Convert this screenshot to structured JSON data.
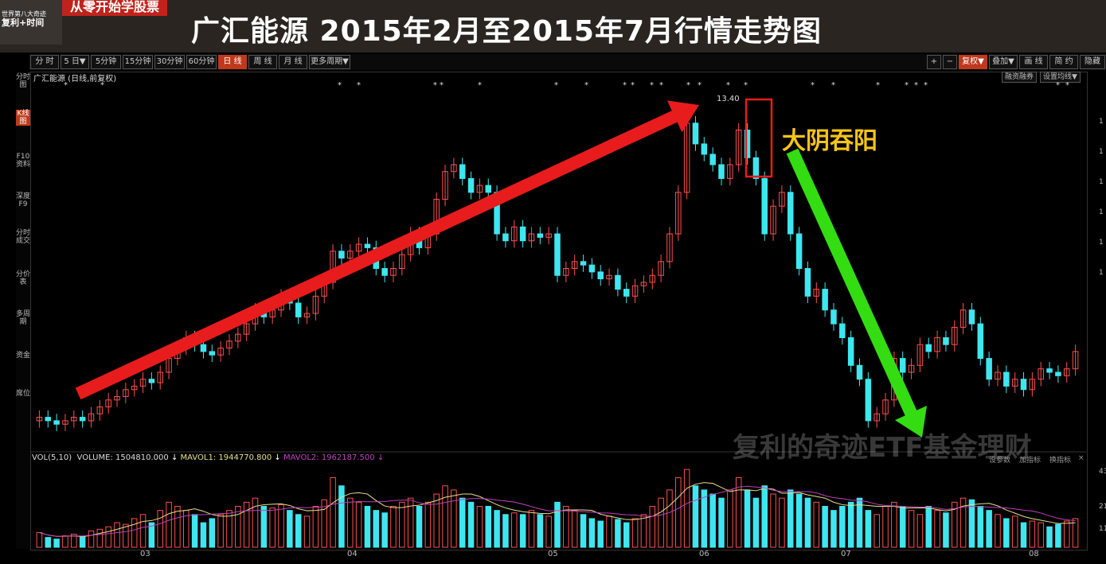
{
  "channel": {
    "badge_lines": [
      "世界第八大奇迹",
      "复利+时间"
    ],
    "banner": "从零开始学股票"
  },
  "title": "广汇能源 2015年2月至2015年7月行情走势图",
  "toolbar": {
    "periods": [
      "分 时",
      "5 日▼",
      "5分钟",
      "15分钟",
      "30分钟",
      "60分钟",
      "日 线",
      "周 线",
      "月 线",
      "更多周期▼"
    ],
    "active_period": "日 线",
    "right_buttons": [
      "+",
      "−",
      "复权▼",
      "叠加▼",
      "画 线",
      "简 约",
      "隐藏"
    ]
  },
  "sidebar": {
    "items": [
      "分时图",
      "K线图",
      "F10资料",
      "深度F9",
      "分时成交",
      "分价表",
      "多周期",
      "资金",
      "席位"
    ],
    "active": "K线图"
  },
  "chart": {
    "stock_title": "广汇能源 (日线,前复权)",
    "peak_label": "13.40",
    "annotation": "大阴吞阳",
    "buttons": [
      "融资融券",
      "设置均线▼"
    ],
    "vol_legend": {
      "name": "VOL(5,10)",
      "volume": "VOLUME: 1504810.000",
      "mavol1": "MAVOL1: 1944770.800",
      "mavol2": "MAVOL2: 1962187.500"
    },
    "vol_buttons": [
      "设参数",
      "加指标",
      "换指标",
      "×"
    ],
    "watermark": "复利的奇迹ETF基金理财",
    "x_labels": [
      "03",
      "04",
      "05",
      "06",
      "07",
      "08"
    ],
    "right_axis_labels": [
      "1",
      "1",
      "1",
      "1",
      "1",
      "1",
      "43",
      "21",
      "11"
    ],
    "colors": {
      "up": "#ff4f4f",
      "down": "#3ee6f0",
      "arrow_up": "#e81c1c",
      "arrow_down": "#33dd11",
      "annotation": "#f5c518"
    }
  },
  "chart_data": {
    "type": "candlestick",
    "title": "广汇能源 (日线,前复权)",
    "categories": [
      "03",
      "04",
      "05",
      "06",
      "07",
      "08"
    ],
    "peak": 13.4,
    "candles_oc": [
      [
        0.06,
        0.07
      ],
      [
        0.07,
        0.06
      ],
      [
        0.06,
        0.05
      ],
      [
        0.05,
        0.06
      ],
      [
        0.06,
        0.07
      ],
      [
        0.07,
        0.06
      ],
      [
        0.06,
        0.08
      ],
      [
        0.08,
        0.1
      ],
      [
        0.1,
        0.12
      ],
      [
        0.12,
        0.13
      ],
      [
        0.13,
        0.15
      ],
      [
        0.15,
        0.16
      ],
      [
        0.16,
        0.18
      ],
      [
        0.18,
        0.17
      ],
      [
        0.17,
        0.2
      ],
      [
        0.2,
        0.24
      ],
      [
        0.24,
        0.27
      ],
      [
        0.27,
        0.3
      ],
      [
        0.3,
        0.28
      ],
      [
        0.28,
        0.26
      ],
      [
        0.26,
        0.25
      ],
      [
        0.25,
        0.27
      ],
      [
        0.27,
        0.29
      ],
      [
        0.29,
        0.31
      ],
      [
        0.31,
        0.34
      ],
      [
        0.34,
        0.38
      ],
      [
        0.38,
        0.36
      ],
      [
        0.36,
        0.38
      ],
      [
        0.38,
        0.42
      ],
      [
        0.42,
        0.4
      ],
      [
        0.4,
        0.36
      ],
      [
        0.36,
        0.37
      ],
      [
        0.37,
        0.42
      ],
      [
        0.42,
        0.46
      ],
      [
        0.46,
        0.55
      ],
      [
        0.55,
        0.53
      ],
      [
        0.53,
        0.55
      ],
      [
        0.55,
        0.57
      ],
      [
        0.57,
        0.56
      ],
      [
        0.56,
        0.5
      ],
      [
        0.5,
        0.48
      ],
      [
        0.48,
        0.5
      ],
      [
        0.5,
        0.54
      ],
      [
        0.54,
        0.6
      ],
      [
        0.6,
        0.56
      ],
      [
        0.56,
        0.6
      ],
      [
        0.6,
        0.7
      ],
      [
        0.7,
        0.78
      ],
      [
        0.78,
        0.8
      ],
      [
        0.8,
        0.76
      ],
      [
        0.76,
        0.72
      ],
      [
        0.72,
        0.74
      ],
      [
        0.74,
        0.72
      ],
      [
        0.72,
        0.6
      ],
      [
        0.6,
        0.58
      ],
      [
        0.58,
        0.62
      ],
      [
        0.62,
        0.58
      ],
      [
        0.58,
        0.6
      ],
      [
        0.6,
        0.59
      ],
      [
        0.59,
        0.6
      ],
      [
        0.6,
        0.48
      ],
      [
        0.48,
        0.5
      ],
      [
        0.5,
        0.52
      ],
      [
        0.52,
        0.51
      ],
      [
        0.51,
        0.49
      ],
      [
        0.49,
        0.47
      ],
      [
        0.47,
        0.48
      ],
      [
        0.48,
        0.44
      ],
      [
        0.44,
        0.42
      ],
      [
        0.42,
        0.45
      ],
      [
        0.45,
        0.46
      ],
      [
        0.46,
        0.48
      ],
      [
        0.48,
        0.52
      ],
      [
        0.52,
        0.6
      ],
      [
        0.6,
        0.72
      ],
      [
        0.72,
        0.92
      ],
      [
        0.92,
        0.86
      ],
      [
        0.86,
        0.83
      ],
      [
        0.83,
        0.8
      ],
      [
        0.8,
        0.76
      ],
      [
        0.76,
        0.8
      ],
      [
        0.8,
        0.9
      ],
      [
        0.9,
        0.82
      ],
      [
        0.82,
        0.76
      ],
      [
        0.76,
        0.6
      ],
      [
        0.6,
        0.68
      ],
      [
        0.68,
        0.72
      ],
      [
        0.72,
        0.6
      ],
      [
        0.6,
        0.5
      ],
      [
        0.5,
        0.42
      ],
      [
        0.42,
        0.44
      ],
      [
        0.44,
        0.38
      ],
      [
        0.38,
        0.34
      ],
      [
        0.34,
        0.3
      ],
      [
        0.3,
        0.22
      ],
      [
        0.22,
        0.18
      ],
      [
        0.18,
        0.06
      ],
      [
        0.06,
        0.08
      ],
      [
        0.08,
        0.12
      ],
      [
        0.12,
        0.24
      ],
      [
        0.24,
        0.2
      ],
      [
        0.2,
        0.22
      ],
      [
        0.22,
        0.28
      ],
      [
        0.28,
        0.26
      ],
      [
        0.26,
        0.3
      ],
      [
        0.3,
        0.28
      ],
      [
        0.28,
        0.33
      ],
      [
        0.33,
        0.38
      ],
      [
        0.38,
        0.34
      ],
      [
        0.34,
        0.24
      ],
      [
        0.24,
        0.18
      ],
      [
        0.18,
        0.2
      ],
      [
        0.2,
        0.16
      ],
      [
        0.16,
        0.18
      ],
      [
        0.18,
        0.15
      ],
      [
        0.15,
        0.18
      ],
      [
        0.18,
        0.21
      ],
      [
        0.21,
        0.2
      ],
      [
        0.2,
        0.19
      ],
      [
        0.19,
        0.21
      ],
      [
        0.21,
        0.26
      ]
    ],
    "volumes": [
      0.18,
      0.12,
      0.1,
      0.14,
      0.16,
      0.13,
      0.2,
      0.22,
      0.25,
      0.3,
      0.28,
      0.35,
      0.4,
      0.3,
      0.45,
      0.55,
      0.5,
      0.45,
      0.4,
      0.3,
      0.35,
      0.4,
      0.45,
      0.5,
      0.55,
      0.6,
      0.5,
      0.48,
      0.52,
      0.45,
      0.4,
      0.38,
      0.5,
      0.58,
      0.85,
      0.75,
      0.6,
      0.55,
      0.5,
      0.45,
      0.42,
      0.5,
      0.55,
      0.6,
      0.5,
      0.55,
      0.65,
      0.75,
      0.7,
      0.6,
      0.55,
      0.5,
      0.5,
      0.45,
      0.4,
      0.42,
      0.4,
      0.45,
      0.4,
      0.38,
      0.55,
      0.5,
      0.45,
      0.4,
      0.35,
      0.32,
      0.38,
      0.34,
      0.3,
      0.35,
      0.4,
      0.5,
      0.6,
      0.7,
      0.85,
      0.95,
      0.75,
      0.7,
      0.65,
      0.6,
      0.7,
      0.85,
      0.7,
      0.6,
      0.75,
      0.65,
      0.6,
      0.7,
      0.65,
      0.6,
      0.55,
      0.5,
      0.45,
      0.5,
      0.55,
      0.6,
      0.45,
      0.4,
      0.5,
      0.55,
      0.5,
      0.45,
      0.4,
      0.5,
      0.45,
      0.42,
      0.55,
      0.6,
      0.58,
      0.5,
      0.45,
      0.4,
      0.35,
      0.38,
      0.3,
      0.32,
      0.3,
      0.25,
      0.28,
      0.32,
      0.35
    ]
  }
}
